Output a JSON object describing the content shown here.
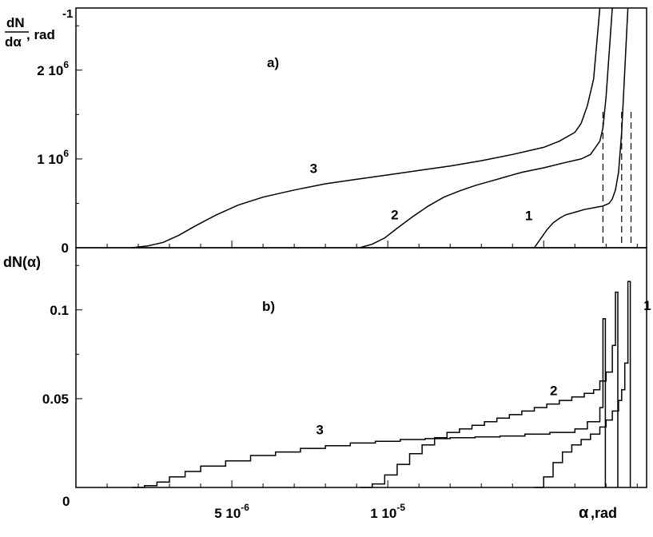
{
  "chart_data": [
    {
      "type": "line",
      "panel_label": "a)",
      "ylabel_lines": [
        "dN",
        "dα"
      ],
      "ylabel_rest": ", rad",
      "ylabel_exp": "-1",
      "yticks": [
        {
          "value": 0,
          "label": "0"
        },
        {
          "value": 1000000,
          "label": "1 10",
          "sup": "6"
        },
        {
          "value": 2000000,
          "label": "2 10",
          "sup": "6"
        }
      ],
      "ylim": [
        0,
        2700000
      ],
      "xlim": [
        0,
        1.83e-05
      ],
      "grid": false,
      "series": [
        {
          "name": "3",
          "label_at": [
            7.5e-06,
            840000
          ],
          "x": [
            1.8e-06,
            2.3e-06,
            2.8e-06,
            3.3e-06,
            3.8e-06,
            4.5e-06,
            5.2e-06,
            6e-06,
            7e-06,
            8e-06,
            9e-06,
            1e-05,
            1.1e-05,
            1.2e-05,
            1.3e-05,
            1.4e-05,
            1.5e-05,
            1.55e-05,
            1.6e-05,
            1.62e-05,
            1.64e-05,
            1.66e-05,
            1.67e-05,
            1.68e-05
          ],
          "y": [
            0,
            20000,
            60000,
            140000,
            240000,
            370000,
            480000,
            570000,
            650000,
            720000,
            770000,
            820000,
            870000,
            920000,
            980000,
            1050000,
            1130000,
            1200000,
            1300000,
            1400000,
            1600000,
            1900000,
            2300000,
            2700000
          ]
        },
        {
          "name": "2",
          "label_at": [
            1.01e-05,
            320000
          ],
          "x": [
            9.1e-06,
            9.5e-06,
            9.9e-06,
            1.03e-05,
            1.08e-05,
            1.13e-05,
            1.18e-05,
            1.23e-05,
            1.28e-05,
            1.33e-05,
            1.38e-05,
            1.43e-05,
            1.5e-05,
            1.57e-05,
            1.62e-05,
            1.65e-05,
            1.67e-05,
            1.68e-05,
            1.69e-05,
            1.7e-05,
            1.71e-05,
            1.72e-05
          ],
          "y": [
            0,
            40000,
            110000,
            220000,
            350000,
            470000,
            570000,
            640000,
            700000,
            750000,
            800000,
            850000,
            900000,
            960000,
            1000000,
            1050000,
            1150000,
            1200000,
            1350000,
            1700000,
            2200000,
            2700000
          ]
        },
        {
          "name": "1",
          "label_at": [
            1.44e-05,
            310000
          ],
          "x": [
            1.47e-05,
            1.49e-05,
            1.51e-05,
            1.53e-05,
            1.55e-05,
            1.57e-05,
            1.6e-05,
            1.63e-05,
            1.66e-05,
            1.69e-05,
            1.71e-05,
            1.72e-05,
            1.73e-05,
            1.74e-05,
            1.75e-05,
            1.76e-05,
            1.77e-05
          ],
          "y": [
            0,
            100000,
            200000,
            280000,
            330000,
            370000,
            400000,
            430000,
            450000,
            470000,
            500000,
            550000,
            650000,
            850000,
            1300000,
            2000000,
            2700000
          ]
        }
      ],
      "dashed_verticals_x": [
        1.69e-05,
        1.75e-05,
        1.78e-05
      ]
    },
    {
      "type": "line",
      "panel_label": "b)",
      "ylabel": "dN(α)",
      "yticks": [
        {
          "value": 0.05,
          "label": "0.05"
        },
        {
          "value": 0.1,
          "label": "0.1"
        }
      ],
      "ylim": [
        0,
        0.135
      ],
      "xlim": [
        0,
        1.83e-05
      ],
      "grid": false,
      "series": [
        {
          "name": "3",
          "label_at": [
            7.7e-06,
            0.03
          ],
          "x": [
            1.8e-06,
            2.2e-06,
            2.6e-06,
            3e-06,
            3.5e-06,
            4e-06,
            4.8e-06,
            5.6e-06,
            6.4e-06,
            7.2e-06,
            8e-06,
            8.8e-06,
            9.6e-06,
            1.04e-05,
            1.12e-05,
            1.2e-05,
            1.28e-05,
            1.36e-05,
            1.44e-05,
            1.52e-05,
            1.6e-05,
            1.64e-05,
            1.68e-05,
            1.69e-05
          ],
          "y": [
            0,
            0.001,
            0.003,
            0.006,
            0.009,
            0.012,
            0.015,
            0.018,
            0.02,
            0.022,
            0.0235,
            0.025,
            0.026,
            0.027,
            0.0275,
            0.028,
            0.0285,
            0.029,
            0.03,
            0.031,
            0.033,
            0.037,
            0.045,
            0.095
          ]
        },
        {
          "name": "2",
          "label_at": [
            1.52e-05,
            0.052
          ],
          "x": [
            9.1e-06,
            9.5e-06,
            9.9e-06,
            1.03e-05,
            1.07e-05,
            1.11e-05,
            1.15e-05,
            1.19e-05,
            1.23e-05,
            1.27e-05,
            1.31e-05,
            1.35e-05,
            1.39e-05,
            1.43e-05,
            1.47e-05,
            1.51e-05,
            1.55e-05,
            1.59e-05,
            1.63e-05,
            1.66e-05,
            1.68e-05,
            1.7e-05,
            1.72e-05,
            1.73e-05
          ],
          "y": [
            0,
            0.002,
            0.007,
            0.013,
            0.019,
            0.024,
            0.028,
            0.031,
            0.033,
            0.035,
            0.037,
            0.039,
            0.041,
            0.043,
            0.045,
            0.047,
            0.049,
            0.051,
            0.053,
            0.055,
            0.06,
            0.065,
            0.08,
            0.11
          ]
        },
        {
          "name": "1",
          "label_at": [
            1.82e-05,
            0.1
          ],
          "x": [
            1.47e-05,
            1.5e-05,
            1.53e-05,
            1.56e-05,
            1.59e-05,
            1.62e-05,
            1.65e-05,
            1.68e-05,
            1.7e-05,
            1.72e-05,
            1.74e-05,
            1.75e-05,
            1.76e-05,
            1.77e-05
          ],
          "y": [
            0,
            0.006,
            0.014,
            0.02,
            0.024,
            0.027,
            0.03,
            0.034,
            0.038,
            0.043,
            0.049,
            0.055,
            0.07,
            0.116
          ]
        }
      ]
    }
  ],
  "x_axis": {
    "origin_label": "0",
    "label": "α",
    "unit": ",rad",
    "ticks": [
      {
        "value": 5e-06,
        "label": "5 10",
        "sup": "-6"
      },
      {
        "value": 1e-05,
        "label": "1 10",
        "sup": "-5"
      }
    ]
  }
}
